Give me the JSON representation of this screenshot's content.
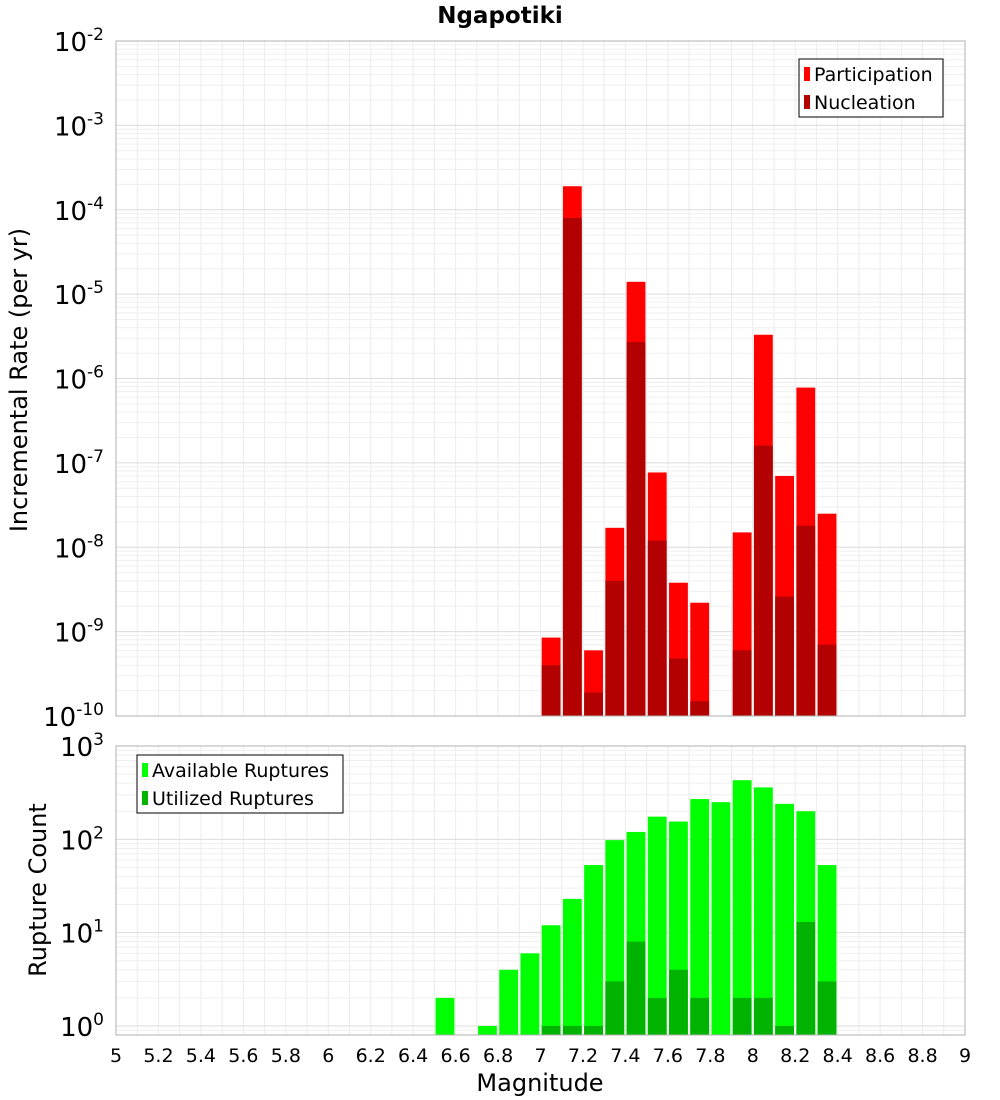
{
  "chart_data": [
    {
      "type": "bar",
      "title": "Ngapotiki",
      "ylabel": "Incremental Rate (per yr)",
      "xlabel": "",
      "yscale": "log",
      "ylim": [
        1e-10,
        0.01
      ],
      "xlim": [
        5,
        9
      ],
      "bar_width": 0.1,
      "grid": true,
      "legend_position": "top-right",
      "y_ticks": [
        {
          "base": "10",
          "exp": "-2",
          "value": 0.01
        },
        {
          "base": "10",
          "exp": "-3",
          "value": 0.001
        },
        {
          "base": "10",
          "exp": "-4",
          "value": 0.0001
        },
        {
          "base": "10",
          "exp": "-5",
          "value": 1e-05
        },
        {
          "base": "10",
          "exp": "-6",
          "value": 1e-06
        },
        {
          "base": "10",
          "exp": "-7",
          "value": 1e-07
        },
        {
          "base": "10",
          "exp": "-8",
          "value": 1e-08
        },
        {
          "base": "10",
          "exp": "-9",
          "value": 1e-09
        },
        {
          "base": "10",
          "exp": "-10",
          "value": 1e-10
        }
      ],
      "series": [
        {
          "name": "Participation",
          "color": "#ff0000",
          "x": [
            7.05,
            7.15,
            7.25,
            7.35,
            7.45,
            7.55,
            7.65,
            7.75,
            7.95,
            8.05,
            8.15,
            8.25,
            8.35
          ],
          "values": [
            8.5e-10,
            0.00019,
            6e-10,
            1.7e-08,
            1.4e-05,
            7.7e-08,
            3.8e-09,
            2.2e-09,
            1.5e-08,
            3.3e-06,
            7e-08,
            7.8e-07,
            2.5e-08
          ]
        },
        {
          "name": "Nucleation",
          "color": "#b30000",
          "x": [
            7.05,
            7.15,
            7.25,
            7.35,
            7.45,
            7.55,
            7.65,
            7.75,
            7.95,
            8.05,
            8.15,
            8.25,
            8.35
          ],
          "values": [
            4e-10,
            8e-05,
            1.9e-10,
            4e-09,
            2.7e-06,
            1.2e-08,
            4.8e-10,
            1.5e-10,
            6e-10,
            1.6e-07,
            2.6e-09,
            1.8e-08,
            7e-10
          ]
        }
      ]
    },
    {
      "type": "bar",
      "title": "",
      "ylabel": "Rupture Count",
      "xlabel": "Magnitude",
      "yscale": "log",
      "ylim": [
        0.8,
        1000
      ],
      "xlim": [
        5,
        9
      ],
      "bar_width": 0.1,
      "grid": true,
      "legend_position": "top-left",
      "x_ticks": [
        "5",
        "5.2",
        "5.4",
        "5.6",
        "5.8",
        "6",
        "6.2",
        "6.4",
        "6.6",
        "6.8",
        "7",
        "7.2",
        "7.4",
        "7.6",
        "7.8",
        "8",
        "8.2",
        "8.4",
        "8.6",
        "8.8",
        "9"
      ],
      "y_ticks": [
        {
          "base": "10",
          "exp": "3",
          "value": 1000
        },
        {
          "base": "10",
          "exp": "2",
          "value": 100
        },
        {
          "base": "10",
          "exp": "1",
          "value": 10
        },
        {
          "base": "10",
          "exp": "0",
          "value": 1
        }
      ],
      "series": [
        {
          "name": "Available Ruptures",
          "color": "#00ff00",
          "x": [
            6.55,
            6.75,
            6.85,
            6.95,
            7.05,
            7.15,
            7.25,
            7.35,
            7.45,
            7.55,
            7.65,
            7.75,
            7.85,
            7.95,
            8.05,
            8.15,
            8.25,
            8.35
          ],
          "values": [
            2,
            1,
            4,
            6,
            12,
            23,
            53,
            98,
            120,
            175,
            155,
            270,
            250,
            430,
            360,
            240,
            200,
            53
          ]
        },
        {
          "name": "Utilized Ruptures",
          "color": "#00b300",
          "x": [
            7.05,
            7.15,
            7.25,
            7.35,
            7.45,
            7.55,
            7.65,
            7.75,
            7.95,
            8.05,
            8.15,
            8.25,
            8.35
          ],
          "values": [
            1,
            1,
            1,
            3,
            8,
            2,
            4,
            2,
            2,
            2,
            1,
            13,
            3
          ]
        }
      ]
    }
  ]
}
